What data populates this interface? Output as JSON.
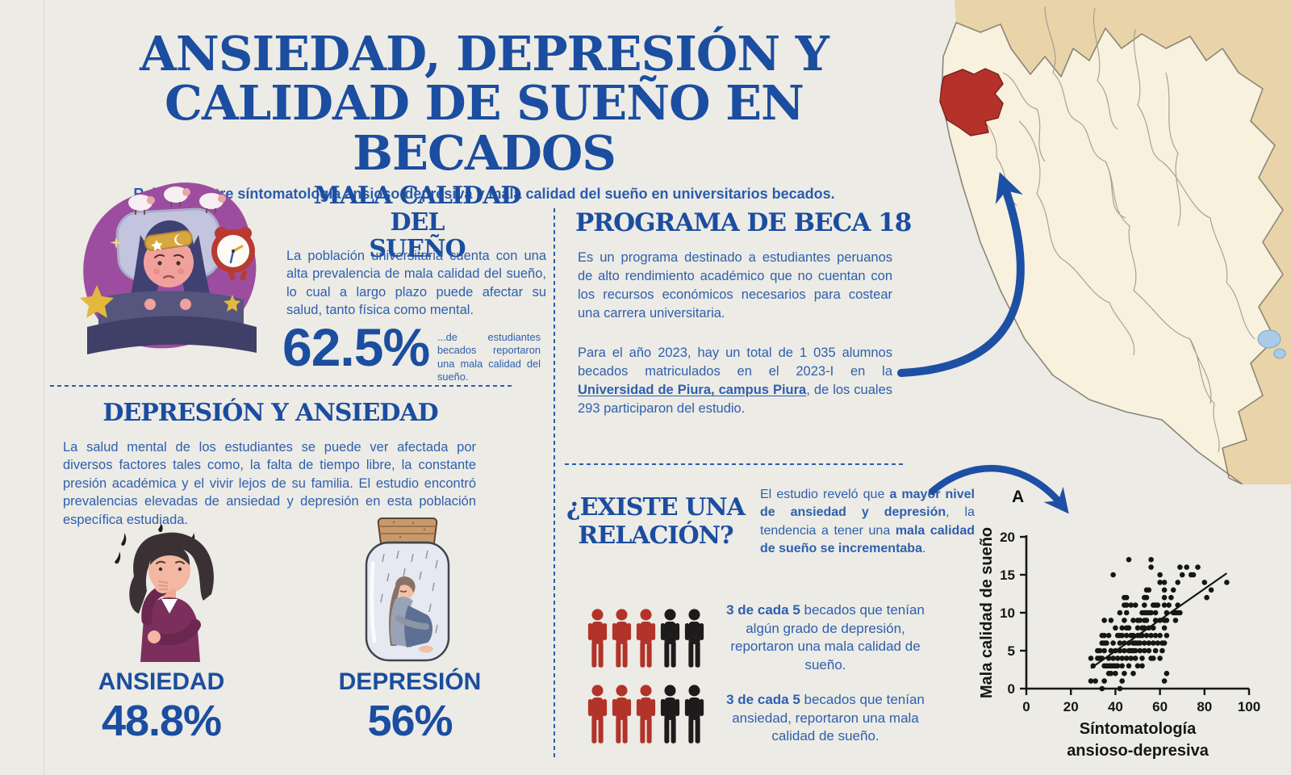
{
  "page": {
    "background": "#ecebe5"
  },
  "header": {
    "title_line1": "ANSIEDAD, DEPRESIÓN Y",
    "title_line2": "CALIDAD DE SUEÑO EN BECADOS",
    "subtitle": "Relación entre síntomatología ansioso-depresiva y mala calidad del sueño en universitarios becados."
  },
  "sleep_quality": {
    "heading_line1": "MALA CALIDAD DEL",
    "heading_line2": "SUEÑO",
    "body": "La población universitaria cuenta con una alta prevalencia de mala calidad del sueño, lo cual a largo plazo puede afectar su salud, tanto física como mental.",
    "stat_value": "62.5%",
    "stat_caption": "...de estudiantes becados reportaron una mala calidad del sueño."
  },
  "beca_program": {
    "heading": "PROGRAMA DE BECA 18",
    "body1": "Es un programa destinado a estudiantes peruanos de alto rendimiento académico que no cuentan con los recursos económicos necesarios para costear una carrera universitaria.",
    "body2_runs": [
      {
        "t": "Para el año 2023, hay un total de 1 035 alumnos becados matriculados en el 2023-I en la "
      },
      {
        "t": "Universidad de Piura, campus Piura",
        "b": true,
        "u": true
      },
      {
        "t": ", de los cuales 293 participaron del estudio."
      }
    ]
  },
  "depression_anxiety": {
    "heading": "DEPRESIÓN Y ANSIEDAD",
    "body": "La salud mental de los estudiantes se puede ver afectada por diversos factores tales como, la falta de tiempo libre, la constante presión académica y el vivir lejos de su familia. El estudio encontró prevalencias elevadas de ansiedad y depresión en esta población específica estudiada.",
    "anxiety_label": "ANSIEDAD",
    "anxiety_value": "48.8%",
    "depression_label": "DEPRESIÓN",
    "depression_value": "56%"
  },
  "relation": {
    "heading_line1": "¿EXISTE UNA",
    "heading_line2": "RELACIÓN?",
    "intro_runs": [
      {
        "t": "El estudio reveló que "
      },
      {
        "t": "a mayor nivel de ansiedad y depresión",
        "b": true
      },
      {
        "t": ", la tendencia a tener una "
      },
      {
        "t": "mala calidad de sueño se incrementaba",
        "b": true
      },
      {
        "t": "."
      }
    ],
    "rows": [
      {
        "icons": {
          "red": 3,
          "black": 2
        },
        "caption_runs": [
          {
            "t": "3 de cada 5",
            "b": true
          },
          {
            "t": " becados que tenían algún grado de depresión, reportaron una mala calidad de sueño."
          }
        ]
      },
      {
        "icons": {
          "red": 3,
          "black": 2
        },
        "caption_runs": [
          {
            "t": "3 de cada 5",
            "b": true
          },
          {
            "t": " becados que tenían ansiedad, reportaron una mala calidad de sueño."
          }
        ]
      }
    ]
  },
  "chart_data": {
    "type": "scatter",
    "panel_label": "A",
    "xlabel": "Síntomatología ansioso-depresiva",
    "xlabel_lines": [
      "Síntomatología",
      "ansioso-depresiva"
    ],
    "ylabel": "Mala calidad de sueño",
    "xlim": [
      0,
      100
    ],
    "ylim": [
      0,
      20
    ],
    "xticks": [
      0,
      20,
      40,
      60,
      80,
      100
    ],
    "yticks": [
      0,
      5,
      10,
      15,
      20
    ],
    "grid": false,
    "trend_line": {
      "x1": 29,
      "y1": 2.7,
      "x2": 90,
      "y2": 15.2
    },
    "points": [
      [
        46,
        17
      ],
      [
        56,
        17
      ],
      [
        56,
        16
      ],
      [
        69,
        16
      ],
      [
        72,
        16
      ],
      [
        77,
        16
      ],
      [
        39,
        15
      ],
      [
        60,
        15
      ],
      [
        70,
        15
      ],
      [
        74,
        15
      ],
      [
        75,
        15
      ],
      [
        60,
        14
      ],
      [
        62,
        14
      ],
      [
        68,
        14
      ],
      [
        80,
        14
      ],
      [
        90,
        14
      ],
      [
        54,
        13
      ],
      [
        55,
        13
      ],
      [
        62,
        13
      ],
      [
        66,
        13
      ],
      [
        83,
        13
      ],
      [
        44,
        12
      ],
      [
        45,
        12
      ],
      [
        53,
        12
      ],
      [
        54,
        12
      ],
      [
        62,
        12
      ],
      [
        65,
        12
      ],
      [
        81,
        12
      ],
      [
        44,
        11
      ],
      [
        45,
        11
      ],
      [
        47,
        11
      ],
      [
        49,
        11
      ],
      [
        53,
        11
      ],
      [
        57,
        11
      ],
      [
        58,
        11
      ],
      [
        59,
        11
      ],
      [
        62,
        11
      ],
      [
        64,
        11
      ],
      [
        68,
        11
      ],
      [
        42,
        10
      ],
      [
        45,
        10
      ],
      [
        52,
        10
      ],
      [
        53,
        10
      ],
      [
        54,
        10
      ],
      [
        55,
        10
      ],
      [
        56,
        10
      ],
      [
        58,
        10
      ],
      [
        63,
        10
      ],
      [
        66,
        10
      ],
      [
        67,
        10
      ],
      [
        68,
        10
      ],
      [
        69,
        10
      ],
      [
        35,
        9
      ],
      [
        38,
        9
      ],
      [
        44,
        9
      ],
      [
        48,
        9
      ],
      [
        50,
        9
      ],
      [
        51,
        9
      ],
      [
        53,
        9
      ],
      [
        54,
        9
      ],
      [
        58,
        9
      ],
      [
        60,
        9
      ],
      [
        62,
        9
      ],
      [
        63,
        9
      ],
      [
        67,
        9
      ],
      [
        40,
        8
      ],
      [
        43,
        8
      ],
      [
        45,
        8
      ],
      [
        46,
        8
      ],
      [
        50,
        8
      ],
      [
        52,
        8
      ],
      [
        53,
        8
      ],
      [
        55,
        8
      ],
      [
        57,
        8
      ],
      [
        62,
        8
      ],
      [
        34,
        7
      ],
      [
        35,
        7
      ],
      [
        37,
        7
      ],
      [
        41,
        7
      ],
      [
        42,
        7
      ],
      [
        43,
        7
      ],
      [
        45,
        7
      ],
      [
        47,
        7
      ],
      [
        48,
        7
      ],
      [
        50,
        7
      ],
      [
        51,
        7
      ],
      [
        52,
        7
      ],
      [
        54,
        7
      ],
      [
        56,
        7
      ],
      [
        58,
        7
      ],
      [
        60,
        7
      ],
      [
        63,
        7
      ],
      [
        34,
        6
      ],
      [
        35,
        6
      ],
      [
        36,
        6
      ],
      [
        39,
        6
      ],
      [
        42,
        6
      ],
      [
        44,
        6
      ],
      [
        46,
        6
      ],
      [
        48,
        6
      ],
      [
        49,
        6
      ],
      [
        50,
        6
      ],
      [
        51,
        6
      ],
      [
        53,
        6
      ],
      [
        55,
        6
      ],
      [
        57,
        6
      ],
      [
        59,
        6
      ],
      [
        61,
        6
      ],
      [
        62,
        6
      ],
      [
        32,
        5
      ],
      [
        33,
        5
      ],
      [
        35,
        5
      ],
      [
        38,
        5
      ],
      [
        40,
        5
      ],
      [
        42,
        5
      ],
      [
        44,
        5
      ],
      [
        46,
        5
      ],
      [
        47,
        5
      ],
      [
        48,
        5
      ],
      [
        49,
        5
      ],
      [
        51,
        5
      ],
      [
        53,
        5
      ],
      [
        55,
        5
      ],
      [
        58,
        5
      ],
      [
        61,
        5
      ],
      [
        29,
        4
      ],
      [
        32,
        4
      ],
      [
        33,
        4
      ],
      [
        34,
        4
      ],
      [
        37,
        4
      ],
      [
        39,
        4
      ],
      [
        41,
        4
      ],
      [
        43,
        4
      ],
      [
        45,
        4
      ],
      [
        47,
        4
      ],
      [
        49,
        4
      ],
      [
        52,
        4
      ],
      [
        56,
        4
      ],
      [
        57,
        4
      ],
      [
        60,
        4
      ],
      [
        30,
        3
      ],
      [
        35,
        3
      ],
      [
        36,
        3
      ],
      [
        37,
        3
      ],
      [
        38,
        3
      ],
      [
        39,
        3
      ],
      [
        40,
        3
      ],
      [
        41,
        3
      ],
      [
        43,
        3
      ],
      [
        46,
        3
      ],
      [
        50,
        3
      ],
      [
        52,
        3
      ],
      [
        37,
        2
      ],
      [
        38,
        2
      ],
      [
        40,
        2
      ],
      [
        44,
        2
      ],
      [
        48,
        2
      ],
      [
        63,
        2
      ],
      [
        29,
        1
      ],
      [
        31,
        1
      ],
      [
        35,
        1
      ],
      [
        43,
        1
      ],
      [
        62,
        1
      ],
      [
        34,
        0
      ],
      [
        42,
        0
      ]
    ]
  },
  "colors": {
    "background": "#ecebe5",
    "heading_blue": "#1b4da0",
    "body_blue": "#2e5fae",
    "accent_red": "#b23329",
    "icon_black": "#1d1b1b",
    "arrow_blue": "#1d4fa5",
    "map_neighbor_tan": "#e9d4a9",
    "map_peru_cream": "#f8f1de",
    "map_border_gray": "#9a958a",
    "map_highlight_red": "#b5322a",
    "map_lake_blue": "#a9cbe7",
    "chart_ink": "#161616"
  }
}
